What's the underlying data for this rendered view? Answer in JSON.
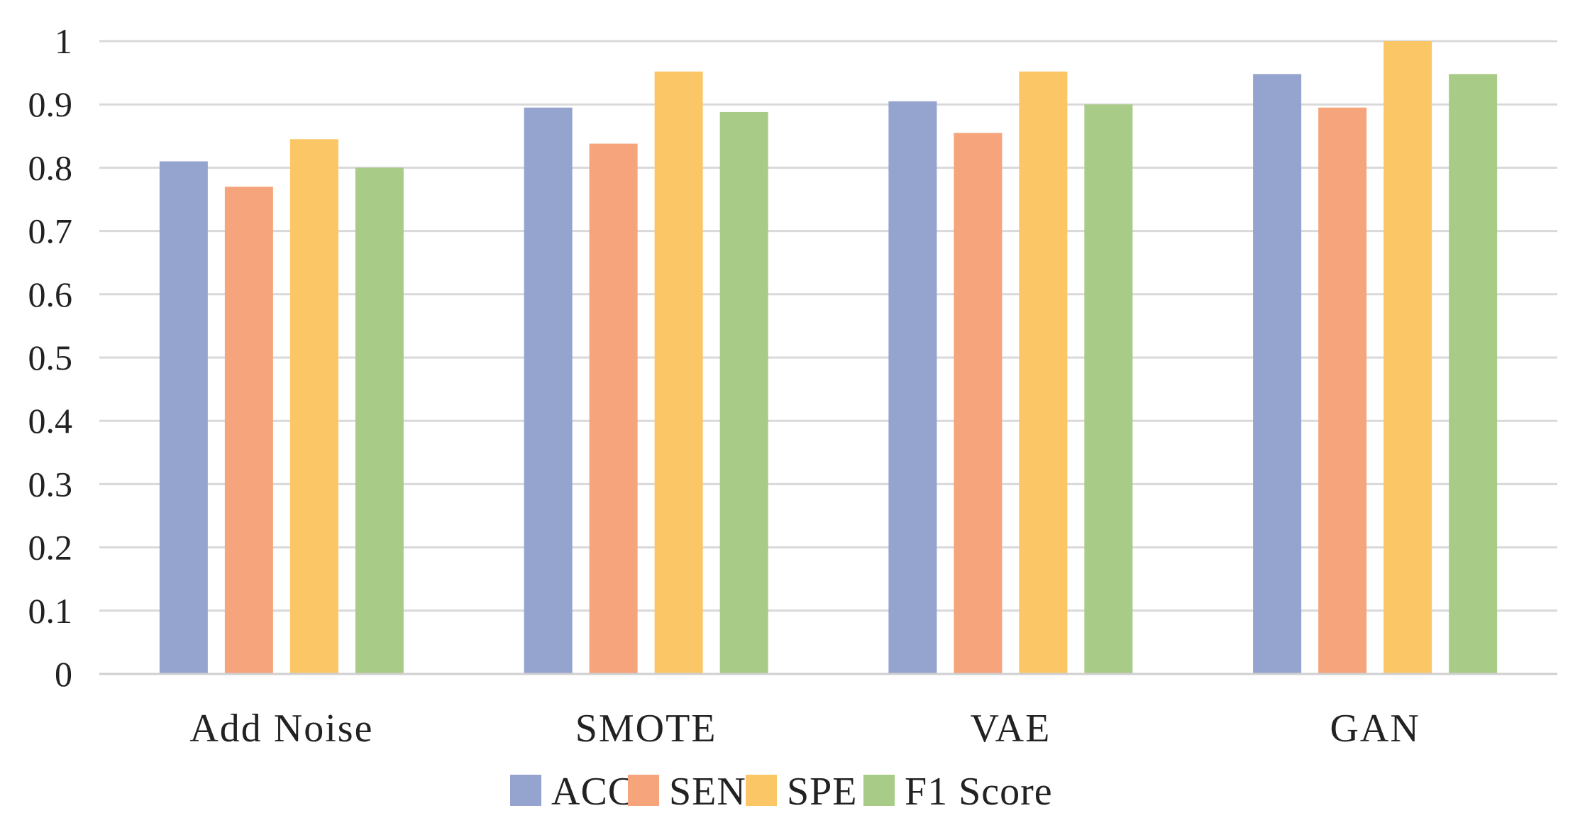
{
  "chart_data": {
    "type": "bar",
    "title": "",
    "xlabel": "",
    "ylabel": "",
    "categories": [
      "Add Noise",
      "SMOTE",
      "VAE",
      "GAN"
    ],
    "series": [
      {
        "name": "ACC",
        "color": "#95a3cf",
        "values": [
          0.81,
          0.895,
          0.905,
          0.948
        ]
      },
      {
        "name": "SEN",
        "color": "#f5a47c",
        "values": [
          0.77,
          0.838,
          0.855,
          0.895
        ]
      },
      {
        "name": "SPE",
        "color": "#fbc766",
        "values": [
          0.845,
          0.952,
          0.952,
          1.0
        ]
      },
      {
        "name": "F1 Score",
        "color": "#a8cb87",
        "values": [
          0.8,
          0.888,
          0.9,
          0.948
        ]
      }
    ],
    "ylim": [
      0,
      1
    ],
    "yticks": [
      "0",
      "0.1",
      "0.2",
      "0.3",
      "0.4",
      "0.5",
      "0.6",
      "0.7",
      "0.8",
      "0.9",
      "1"
    ],
    "grid": true,
    "legend_position": "bottom-center"
  }
}
